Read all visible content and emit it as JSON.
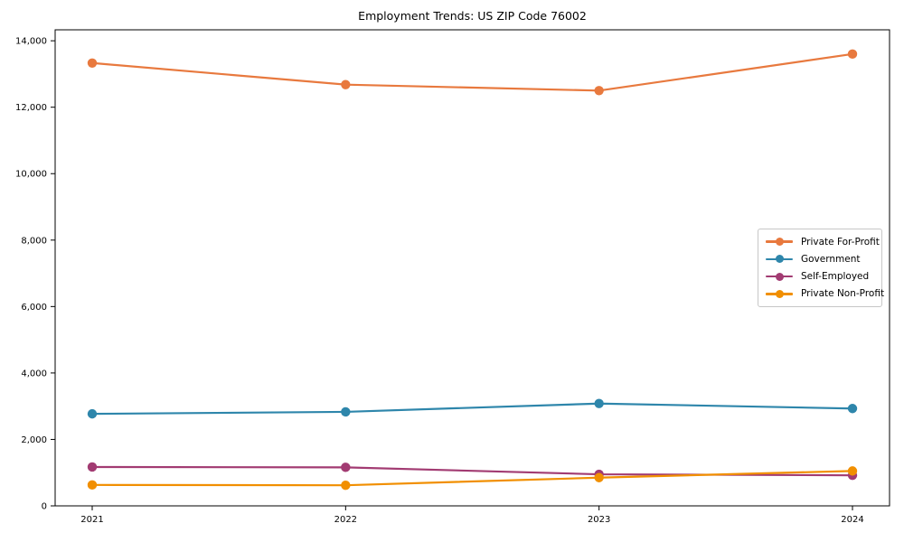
{
  "figure": {
    "background": "#ffffff"
  },
  "chart_data": {
    "type": "line",
    "title": "Employment Trends: US ZIP Code 76002",
    "categories": [
      "2021",
      "2022",
      "2023",
      "2024"
    ],
    "series": [
      {
        "name": "Private For-Profit",
        "color": "#E8793E",
        "values": [
          13330,
          12680,
          12500,
          13600
        ]
      },
      {
        "name": "Government",
        "color": "#2E86AB",
        "values": [
          2770,
          2830,
          3080,
          2930
        ]
      },
      {
        "name": "Self-Employed",
        "color": "#A23B72",
        "values": [
          1170,
          1160,
          950,
          920
        ]
      },
      {
        "name": "Private Non-Profit",
        "color": "#F18F01",
        "values": [
          630,
          620,
          850,
          1050
        ]
      }
    ],
    "xlabel": "",
    "ylabel": "",
    "ylim": [
      0,
      14330
    ],
    "yticks": [
      0,
      2000,
      4000,
      6000,
      8000,
      10000,
      12000,
      14000
    ],
    "ytick_labels": [
      "0",
      "2,000",
      "4,000",
      "6,000",
      "8,000",
      "10,000",
      "12,000",
      "14,000"
    ],
    "grid": false,
    "legend": {
      "position": "center-right",
      "border_color": "#c7c7c7"
    },
    "marker": "o",
    "axis_color": "#000000"
  }
}
